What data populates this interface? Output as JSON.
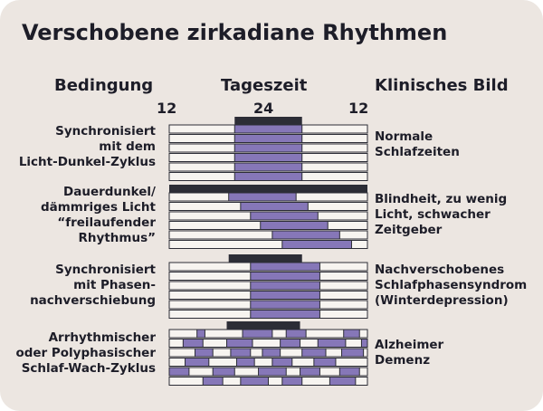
{
  "title": "Verschobene zirkadiane Rhythmen",
  "headers": {
    "condition": "Bedingung",
    "time": "Tageszeit",
    "clinical": "Klinisches Bild"
  },
  "time_ticks": [
    "12",
    "24",
    "12"
  ],
  "colors": {
    "background": "#ece6e1",
    "row": "#f7f4f0",
    "sleep": "#8677b8",
    "dark_bar": "#2c2d36",
    "text": "#1d1d28"
  },
  "panels": [
    {
      "condition": [
        "Synchronisiert",
        "mit dem",
        "Licht-Dunkel-Zyklus"
      ],
      "clinical": [
        "Normale",
        "Schlafzeiten"
      ],
      "dark": [
        [
          0.33,
          0.67
        ]
      ],
      "rows": [
        [
          [
            0.33,
            0.67
          ]
        ],
        [
          [
            0.33,
            0.67
          ]
        ],
        [
          [
            0.33,
            0.67
          ]
        ],
        [
          [
            0.33,
            0.67
          ]
        ],
        [
          [
            0.33,
            0.67
          ]
        ],
        [
          [
            0.33,
            0.67
          ]
        ]
      ]
    },
    {
      "condition": [
        "Dauerdunkel/",
        "dämmriges Licht",
        "“freilaufender",
        "Rhythmus”"
      ],
      "clinical": [
        "Blindheit, zu wenig",
        "Licht, schwacher",
        "Zeitgeber"
      ],
      "dark": [
        [
          0,
          1
        ]
      ],
      "rows": [
        [
          [
            0.3,
            0.64
          ]
        ],
        [
          [
            0.36,
            0.7
          ]
        ],
        [
          [
            0.41,
            0.75
          ]
        ],
        [
          [
            0.46,
            0.8
          ]
        ],
        [
          [
            0.52,
            0.86
          ]
        ],
        [
          [
            0.57,
            0.92
          ]
        ]
      ]
    },
    {
      "condition": [
        "Synchronisiert",
        "mit Phasen-",
        "nachverschiebung"
      ],
      "clinical": [
        "Nachverschobenes",
        "Schlafphasensyndrom",
        "(Winterdepression)"
      ],
      "dark": [
        [
          0.3,
          0.67
        ]
      ],
      "rows": [
        [
          [
            0.41,
            0.76
          ]
        ],
        [
          [
            0.41,
            0.76
          ]
        ],
        [
          [
            0.41,
            0.76
          ]
        ],
        [
          [
            0.41,
            0.76
          ]
        ],
        [
          [
            0.41,
            0.76
          ]
        ],
        [
          [
            0.41,
            0.76
          ]
        ]
      ]
    },
    {
      "condition": [
        "Arrhythmischer",
        "oder Polyphasischer",
        "Schlaf-Wach-Zyklus"
      ],
      "clinical": [
        "Alzheimer",
        "Demenz"
      ],
      "dark": [
        [
          0.29,
          0.66
        ]
      ],
      "rows": [
        [
          [
            0.14,
            0.18
          ],
          [
            0.37,
            0.52
          ],
          [
            0.59,
            0.69
          ],
          [
            0.88,
            0.96
          ]
        ],
        [
          [
            0.07,
            0.17
          ],
          [
            0.29,
            0.42
          ],
          [
            0.56,
            0.66
          ],
          [
            0.75,
            0.89
          ],
          [
            0.97,
            1
          ]
        ],
        [
          [
            0.13,
            0.22
          ],
          [
            0.31,
            0.41
          ],
          [
            0.47,
            0.56
          ],
          [
            0.67,
            0.79
          ],
          [
            0.87,
            0.98
          ]
        ],
        [
          [
            0.08,
            0.2
          ],
          [
            0.34,
            0.43
          ],
          [
            0.52,
            0.62
          ],
          [
            0.73,
            0.84
          ]
        ],
        [
          [
            0,
            0.1
          ],
          [
            0.22,
            0.33
          ],
          [
            0.45,
            0.59
          ],
          [
            0.66,
            0.76
          ],
          [
            0.86,
            0.96
          ]
        ],
        [
          [
            0.17,
            0.27
          ],
          [
            0.36,
            0.5
          ],
          [
            0.57,
            0.67
          ],
          [
            0.81,
            0.94
          ]
        ]
      ]
    }
  ]
}
